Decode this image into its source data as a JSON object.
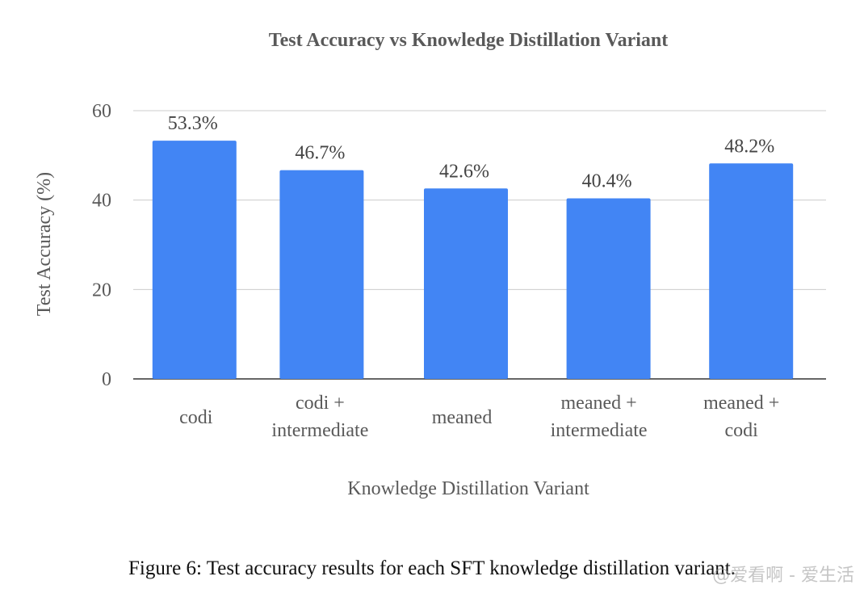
{
  "chart_data": {
    "type": "bar",
    "title": "Test Accuracy vs Knowledge Distillation Variant",
    "xlabel": "Knowledge Distillation Variant",
    "ylabel": "Test Accuracy (%)",
    "categories": [
      [
        "codi"
      ],
      [
        "codi +",
        "intermediate"
      ],
      [
        "meaned"
      ],
      [
        "meaned +",
        "intermediate"
      ],
      [
        "meaned +",
        "codi"
      ]
    ],
    "values": [
      53.3,
      46.7,
      42.6,
      40.4,
      48.2
    ],
    "data_labels": [
      "53.3%",
      "46.7%",
      "42.6%",
      "40.4%",
      "48.2%"
    ],
    "ylim": [
      0,
      60
    ],
    "yticks": [
      0,
      20,
      40,
      60
    ],
    "grid": true,
    "legend": "none",
    "bar_color": "#4285f4"
  },
  "caption": "Figure 6: Test accuracy results for each SFT knowledge distillation variant.",
  "watermark": "@爱看啊 - 爱生活"
}
